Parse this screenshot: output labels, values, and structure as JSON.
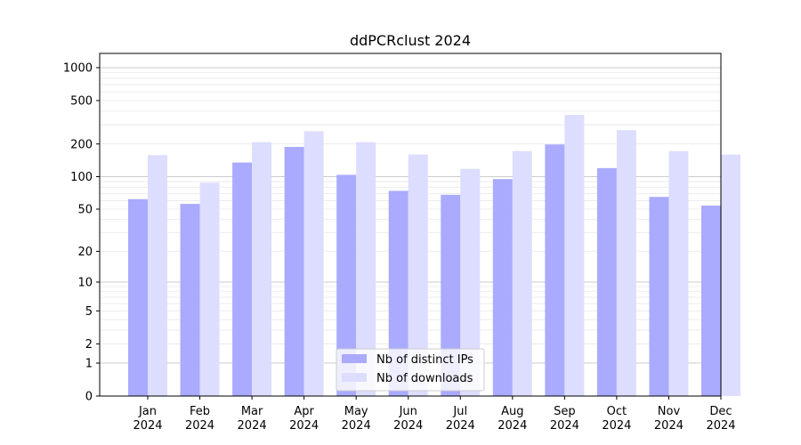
{
  "chart_data": {
    "type": "bar",
    "title": "ddPCRclust 2024",
    "xlabel": "",
    "ylabel": "",
    "yscale": "log(1+y)",
    "ylim": [
      0,
      1350
    ],
    "y_ticks": [
      0,
      1,
      2,
      5,
      10,
      20,
      50,
      100,
      200,
      500,
      1000
    ],
    "grid": true,
    "legend_position": "bottom-center",
    "categories": [
      "Jan\n2024",
      "Feb\n2024",
      "Mar\n2024",
      "Apr\n2024",
      "May\n2024",
      "Jun\n2024",
      "Jul\n2024",
      "Aug\n2024",
      "Sep\n2024",
      "Oct\n2024",
      "Nov\n2024",
      "Dec\n2024"
    ],
    "series": [
      {
        "name": "Nb of distinct IPs",
        "color": "#aaaaff",
        "values": [
          62,
          56,
          135,
          188,
          104,
          74,
          68,
          95,
          198,
          120,
          65,
          54
        ]
      },
      {
        "name": "Nb of downloads",
        "color": "#ddddff",
        "values": [
          158,
          88,
          208,
          262,
          208,
          160,
          118,
          172,
          370,
          268,
          172,
          160
        ]
      }
    ]
  }
}
